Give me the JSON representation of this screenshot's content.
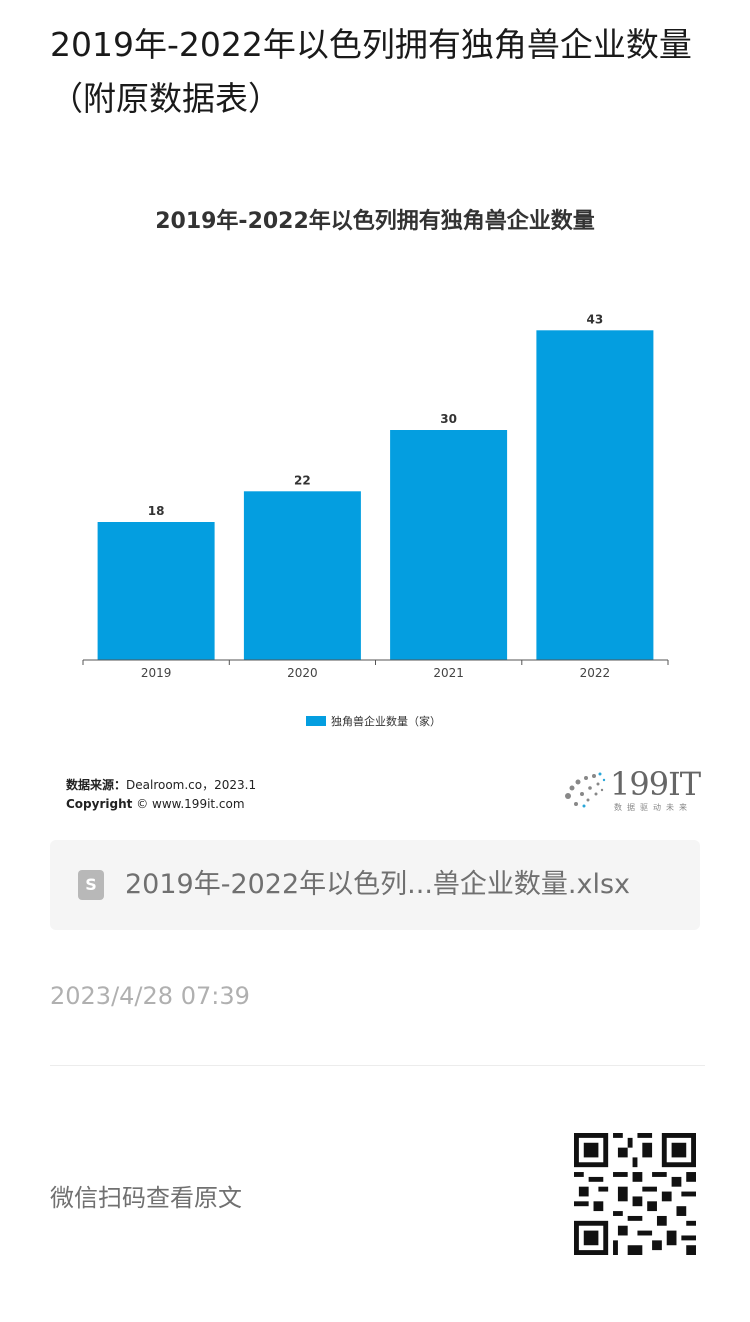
{
  "article": {
    "title": "2019年-2022年以色列拥有独角兽企业数量（附原数据表）",
    "timestamp": "2023/4/28 07:39",
    "scan_text": "微信扫码查看原文"
  },
  "chart_data": {
    "type": "bar",
    "title": "2019年-2022年以色列拥有独角兽企业数量",
    "categories": [
      "2019",
      "2020",
      "2021",
      "2022"
    ],
    "series": [
      {
        "name": "独角兽企业数量（家）",
        "values": [
          18,
          22,
          30,
          43
        ],
        "color": "#049ee0"
      }
    ],
    "data_labels": [
      "18",
      "22",
      "30",
      "43"
    ],
    "ylim": [
      0,
      45
    ],
    "grid": false,
    "legend": "bottom"
  },
  "source": {
    "label": "数据来源：",
    "text": "Dealroom.co，2023.1",
    "copyright_label": "Copyright",
    "copyright_text": "© www.199it.com"
  },
  "logo": {
    "text": "199IT",
    "subtitle": "数据驱动未来"
  },
  "attachment": {
    "icon": "spreadsheet-file-icon",
    "icon_letter": "S",
    "name": "2019年-2022年以色列...兽企业数量.xlsx"
  },
  "qr": {
    "icon": "qr-code-icon"
  }
}
